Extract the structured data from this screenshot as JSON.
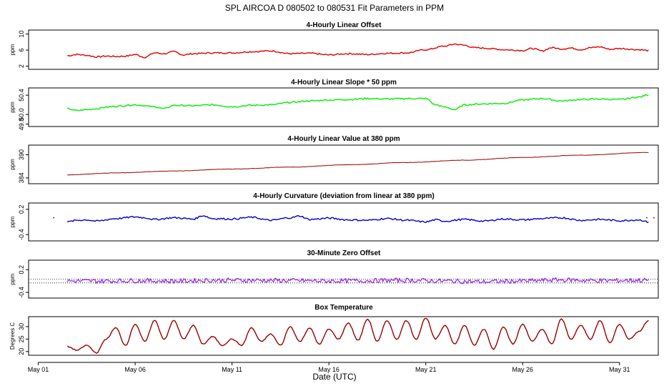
{
  "chart_data": {
    "type": "line",
    "title": "SPL   AIRCOA D   080502 to 080531   Fit Parameters in PPM",
    "xlabel": "Date (UTC)",
    "x_ticks": [
      "May 01",
      "May 06",
      "May 11",
      "May 16",
      "May 21",
      "May 26",
      "May 31"
    ],
    "x_tick_days": [
      1,
      6,
      11,
      16,
      21,
      26,
      31
    ],
    "xlim": [
      0.5,
      33.0
    ],
    "data_range_days": [
      2.5,
      32.5
    ],
    "panels": [
      {
        "title": "4-Hourly Linear Offset",
        "ylabel": "ppm",
        "yticks": [
          "10",
          "6",
          "2"
        ],
        "ytick_values": [
          10,
          6,
          2
        ],
        "ylim": [
          1.2,
          11.0
        ],
        "color": "#dd0000",
        "series": {
          "x": [
            2.5,
            3,
            3.5,
            4,
            4.5,
            5,
            5.5,
            6,
            6.5,
            7,
            7.5,
            8,
            8.5,
            9,
            10,
            11,
            12,
            13,
            14,
            15,
            16,
            17,
            18,
            19,
            20,
            21,
            22,
            22.5,
            23,
            23.5,
            24,
            24.5,
            25,
            25.5,
            26,
            26.5,
            27,
            27.5,
            28,
            28.5,
            29,
            29.5,
            30,
            30.5,
            31,
            32,
            32.5
          ],
          "y": [
            4.6,
            4.9,
            4.7,
            4.3,
            4.5,
            4.4,
            4.5,
            4.9,
            4.2,
            5.3,
            5.1,
            5.6,
            4.8,
            5.1,
            5.3,
            5.3,
            5.6,
            5.8,
            5.1,
            5.2,
            4.8,
            5.1,
            4.9,
            5.2,
            5.3,
            6.1,
            7.0,
            7.5,
            7.2,
            6.6,
            6.5,
            6.3,
            6.1,
            6.0,
            5.9,
            6.4,
            5.8,
            6.6,
            6.3,
            6.5,
            6.1,
            6.6,
            6.8,
            6.2,
            6.4,
            6.1,
            5.9
          ]
        }
      },
      {
        "title": "4-Hourly Linear Slope * 50 ppm",
        "ylabel": "ppm",
        "yticks": [
          "50.4",
          "50.0",
          "49.8"
        ],
        "ytick_values": [
          50.4,
          50.0,
          49.8
        ],
        "ylim": [
          49.75,
          50.55
        ],
        "color": "#00ee00",
        "series": {
          "x": [
            2.5,
            3,
            3.5,
            4,
            4.5,
            5,
            6,
            7,
            7.5,
            8,
            9,
            10,
            11,
            12,
            13,
            14,
            15,
            16,
            17,
            18,
            19,
            20,
            21,
            21.5,
            22,
            22.5,
            23,
            24,
            25,
            26,
            27,
            28,
            29,
            30,
            31,
            32,
            32.5
          ],
          "y": [
            50.12,
            50.08,
            50.1,
            50.12,
            50.15,
            50.17,
            50.2,
            50.16,
            50.12,
            50.19,
            50.18,
            50.2,
            50.16,
            50.19,
            50.2,
            50.25,
            50.28,
            50.3,
            50.31,
            50.33,
            50.32,
            50.33,
            50.33,
            50.2,
            50.15,
            50.1,
            50.2,
            50.22,
            50.23,
            50.3,
            50.33,
            50.28,
            50.31,
            50.32,
            50.31,
            50.36,
            50.41
          ]
        }
      },
      {
        "title": "4-Hourly Linear Value at 380 ppm",
        "ylabel": "ppm",
        "yticks": [
          "390",
          "384"
        ],
        "ytick_values": [
          390,
          384
        ],
        "ylim": [
          382.5,
          392.5
        ],
        "color": "#990000",
        "series": {
          "x": [
            2.5,
            5,
            8,
            11,
            14,
            17,
            20,
            23,
            26,
            29,
            32.5
          ],
          "y": [
            384.8,
            385.3,
            385.8,
            386.3,
            386.8,
            387.4,
            388.0,
            388.6,
            389.3,
            389.9,
            390.6
          ]
        }
      },
      {
        "title": "4-Hourly Curvature (deviation from linear at 380 ppm)",
        "ylabel": "ppm",
        "yticks": [
          "0.2",
          "-0.4"
        ],
        "ytick_values": [
          0.2,
          -0.4
        ],
        "ylim": [
          -0.55,
          0.35
        ],
        "color": "#0000cc",
        "series": {
          "x": [
            2.5,
            3,
            3.5,
            4,
            5,
            6,
            6.5,
            7,
            8,
            9,
            9.5,
            10,
            11,
            12,
            13,
            14,
            14.5,
            15,
            16,
            17,
            18,
            19,
            20,
            21,
            21.5,
            22,
            23,
            24,
            25,
            26,
            27,
            28,
            29,
            30,
            31,
            32,
            32.5
          ],
          "y": [
            -0.1,
            -0.06,
            -0.05,
            -0.08,
            -0.02,
            0.02,
            0.0,
            -0.04,
            0.0,
            -0.03,
            0.05,
            -0.02,
            -0.03,
            0.01,
            -0.06,
            0.0,
            0.04,
            -0.04,
            -0.01,
            -0.05,
            -0.06,
            -0.02,
            -0.06,
            -0.1,
            -0.05,
            -0.08,
            -0.04,
            -0.08,
            -0.03,
            -0.05,
            -0.02,
            0.0,
            -0.06,
            -0.04,
            -0.07,
            -0.05,
            -0.1
          ]
        }
      },
      {
        "title": "30-Minute Zero Offset",
        "ylabel": "ppm",
        "yticks": [
          "0.2",
          "-0.4"
        ],
        "ytick_values": [
          0.2,
          -0.4
        ],
        "ylim": [
          -0.55,
          0.45
        ],
        "color": "#9933ee",
        "refline_values": [
          -0.05,
          -0.15
        ],
        "series": {
          "x": [
            2.5,
            4,
            6,
            8,
            10,
            12,
            14,
            16,
            18,
            20,
            22,
            24,
            26,
            28,
            30,
            32.5
          ],
          "y": [
            -0.1,
            -0.1,
            -0.09,
            -0.1,
            -0.08,
            -0.08,
            -0.09,
            -0.1,
            -0.09,
            -0.08,
            -0.1,
            -0.12,
            -0.1,
            -0.07,
            -0.09,
            -0.08
          ]
        }
      },
      {
        "title": "Box Temperature",
        "ylabel": "Degrees C",
        "yticks": [
          "30",
          "25",
          "20"
        ],
        "ytick_values": [
          30,
          25,
          20
        ],
        "ylim": [
          18.5,
          34.0
        ],
        "color": "#990000",
        "series": {
          "x": [
            2.5,
            3,
            3.5,
            4,
            4.5,
            5,
            5.5,
            6,
            6.5,
            7,
            7.5,
            8,
            8.5,
            9,
            9.5,
            10,
            10.5,
            11,
            11.5,
            12,
            12.5,
            13,
            13.5,
            14,
            14.5,
            15,
            15.5,
            16,
            16.5,
            17,
            17.5,
            18,
            18.5,
            19,
            19.5,
            20,
            20.5,
            21,
            21.5,
            22,
            22.5,
            23,
            23.5,
            24,
            24.5,
            25,
            25.5,
            26,
            26.5,
            27,
            27.5,
            28,
            28.5,
            29,
            29.5,
            30,
            30.5,
            31,
            31.5,
            32,
            32.5
          ],
          "y": [
            22,
            20.5,
            22.5,
            19.5,
            25,
            29.5,
            22.5,
            31,
            24,
            32.5,
            25,
            32.5,
            25,
            30.5,
            23,
            26,
            22.5,
            25,
            22.5,
            29.5,
            24,
            27,
            22.5,
            30,
            24,
            29.5,
            23,
            29,
            25,
            31.5,
            24.5,
            33,
            24,
            32.5,
            25,
            32.5,
            25,
            33.5,
            25,
            30.5,
            23,
            30.5,
            22.5,
            29,
            21,
            30,
            23,
            31,
            24,
            29,
            23,
            33,
            25,
            30.5,
            25,
            32.5,
            23.5,
            31,
            25,
            28,
            32.5
          ]
        }
      }
    ]
  }
}
